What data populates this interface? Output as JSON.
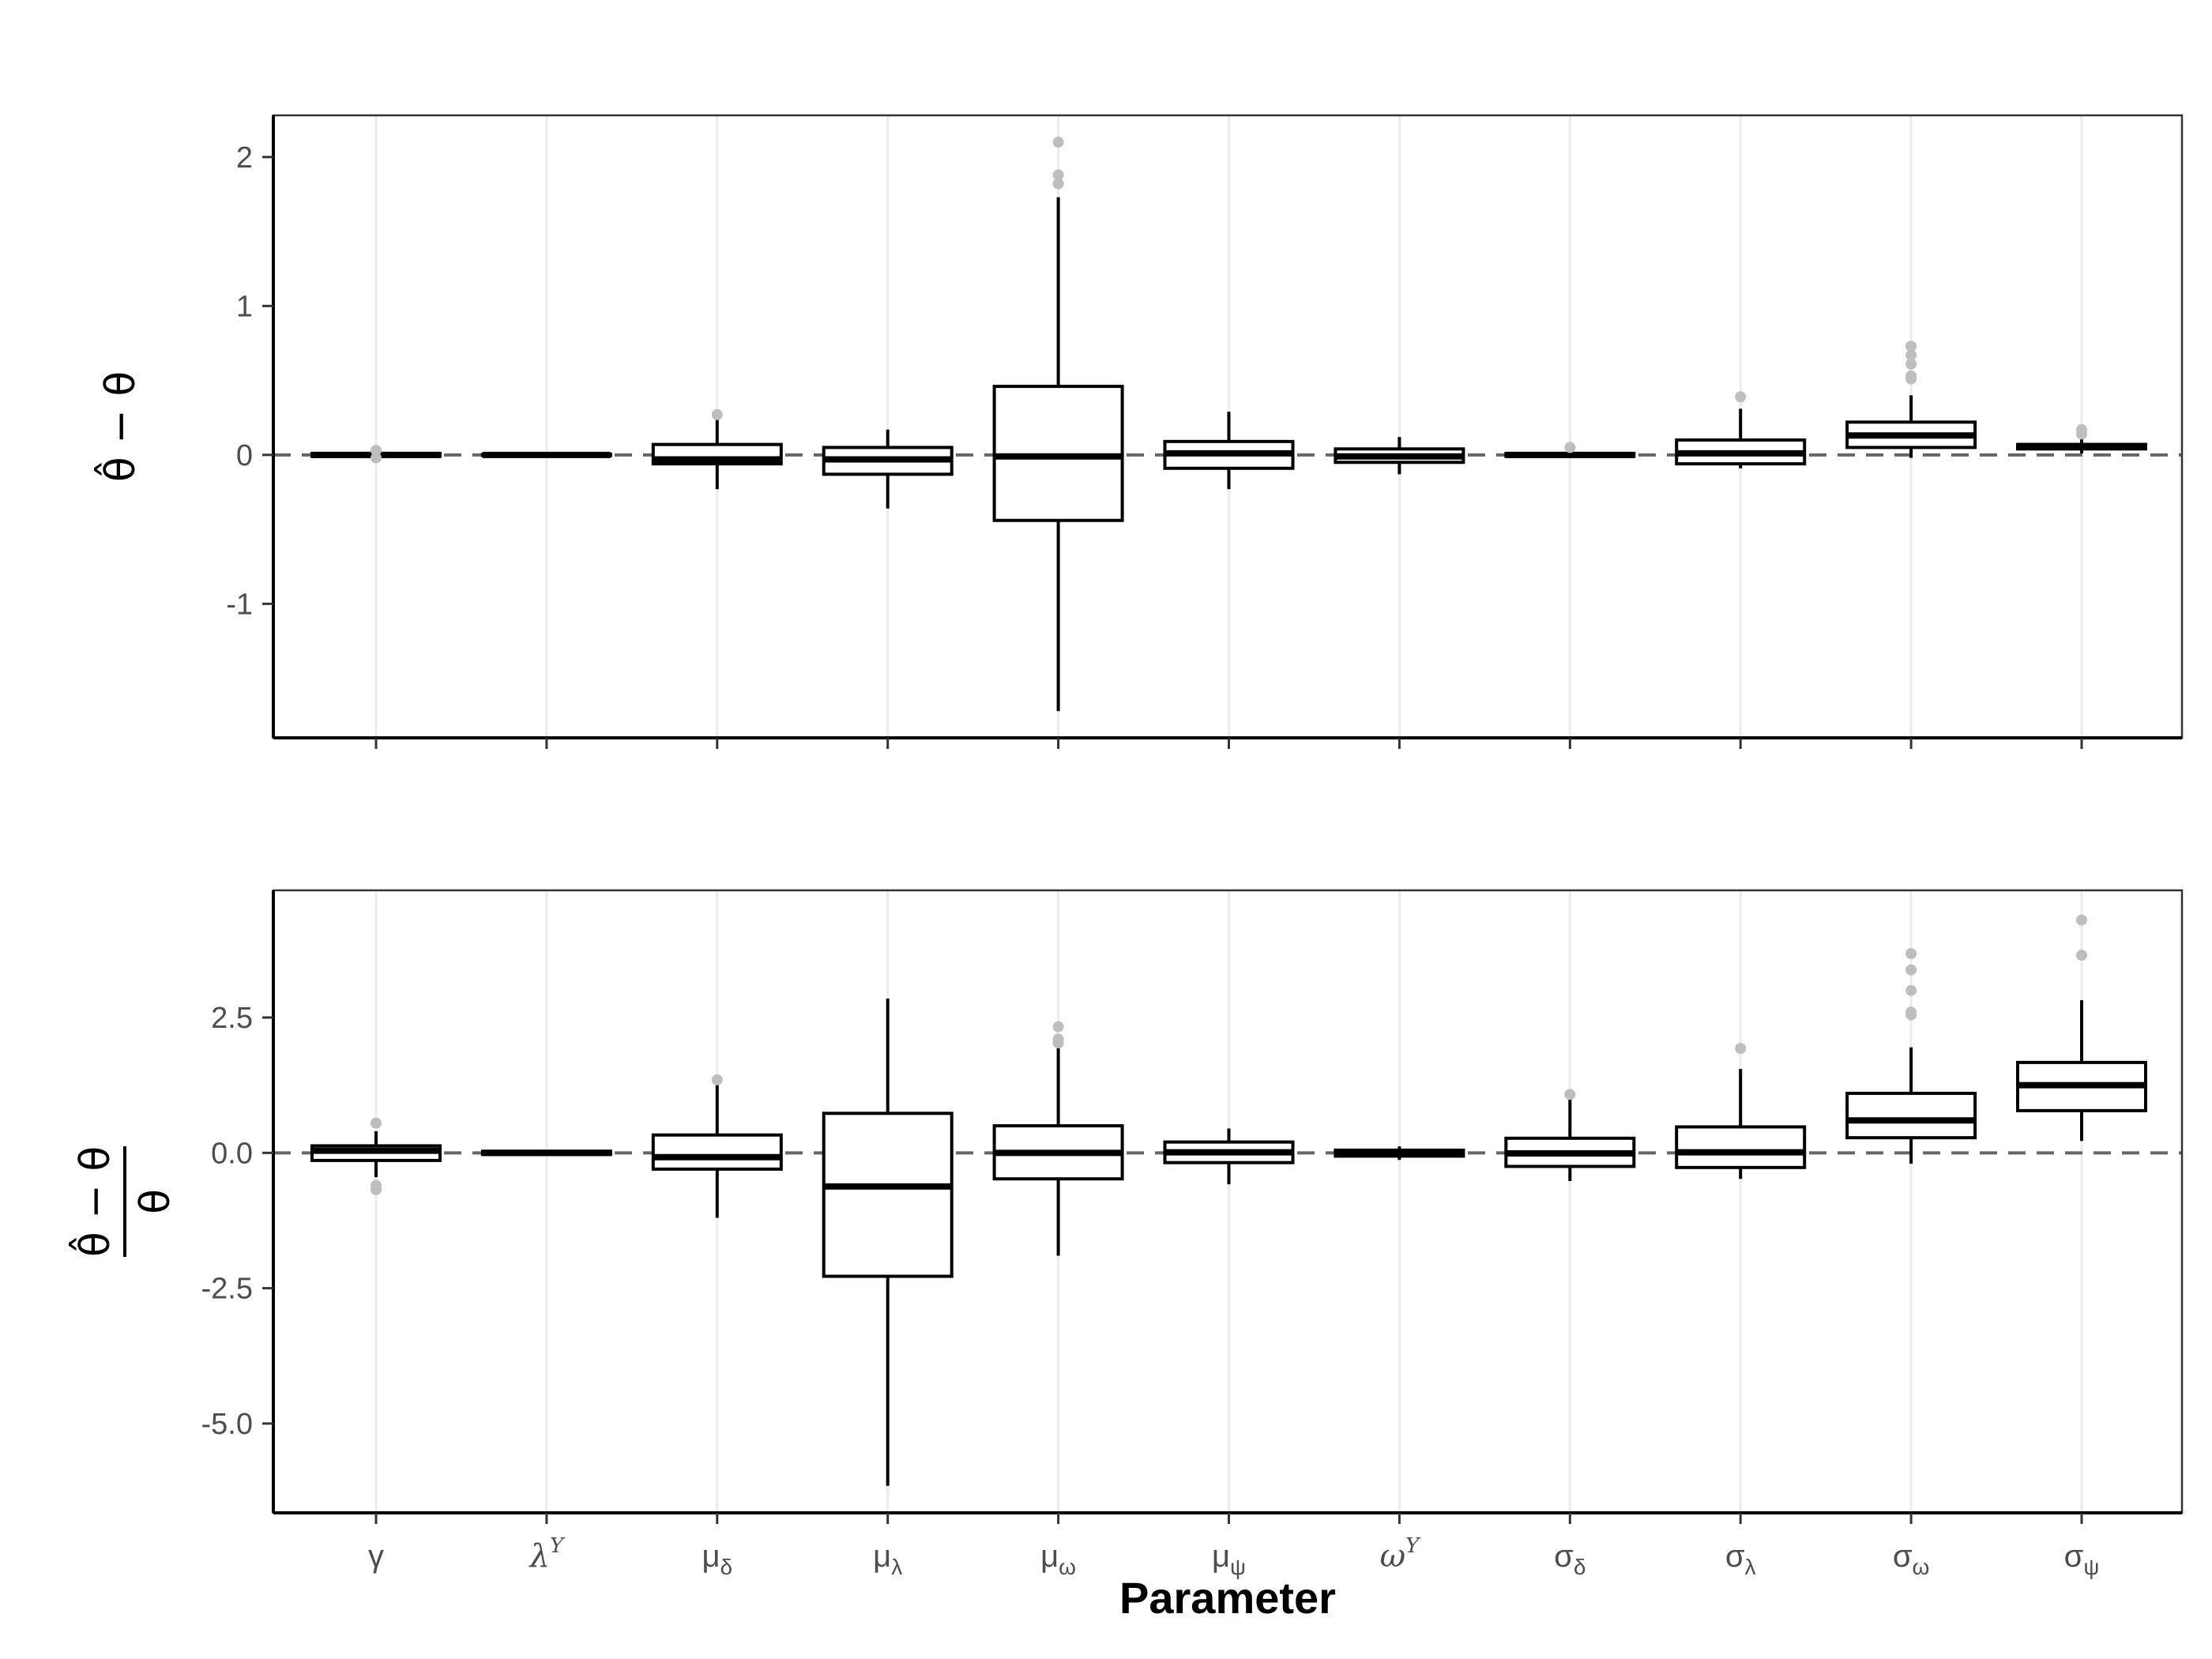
{
  "chart_data": {
    "type": "boxplot",
    "xlabel": "Parameter",
    "categories": [
      {
        "base": "γ",
        "sub": "",
        "sup": "",
        "italic": false
      },
      {
        "base": "λ",
        "sub": "",
        "sup": "Y",
        "italic": true
      },
      {
        "base": "μ",
        "sub": "δ",
        "sup": "",
        "italic": false
      },
      {
        "base": "μ",
        "sub": "λ",
        "sup": "",
        "italic": false
      },
      {
        "base": "μ",
        "sub": "ω",
        "sup": "",
        "italic": false
      },
      {
        "base": "μ",
        "sub": "ψ",
        "sup": "",
        "italic": false
      },
      {
        "base": "ω",
        "sub": "",
        "sup": "Y",
        "italic": true
      },
      {
        "base": "σ",
        "sub": "δ",
        "sup": "",
        "italic": false
      },
      {
        "base": "σ",
        "sub": "λ",
        "sup": "",
        "italic": false
      },
      {
        "base": "σ",
        "sub": "ω",
        "sup": "",
        "italic": false
      },
      {
        "base": "σ",
        "sub": "ψ",
        "sup": "",
        "italic": false
      }
    ],
    "panels": [
      {
        "ylabel_numerator": "θ̂ − θ",
        "ylabel_denominator": "",
        "ylim": [
          -1.9,
          2.28
        ],
        "yticks": [
          -1,
          0,
          1,
          2
        ],
        "ytick_labels": [
          "-1",
          "0",
          "1",
          "2"
        ],
        "reference_line": 0,
        "boxes": [
          {
            "q1": -0.01,
            "median": 0.0,
            "q3": 0.01,
            "whisker_low": -0.02,
            "whisker_high": 0.02,
            "outliers": [
              0.03,
              -0.02
            ]
          },
          {
            "q1": -0.005,
            "median": 0.0,
            "q3": 0.005,
            "whisker_low": -0.01,
            "whisker_high": 0.01,
            "outliers": []
          },
          {
            "q1": -0.06,
            "median": -0.03,
            "q3": 0.07,
            "whisker_low": -0.23,
            "whisker_high": 0.24,
            "outliers": [
              0.27
            ]
          },
          {
            "q1": -0.13,
            "median": -0.03,
            "q3": 0.05,
            "whisker_low": -0.36,
            "whisker_high": 0.17,
            "outliers": []
          },
          {
            "q1": -0.44,
            "median": -0.01,
            "q3": 0.46,
            "whisker_low": -1.72,
            "whisker_high": 1.73,
            "outliers": [
              1.82,
              1.88,
              2.1
            ]
          },
          {
            "q1": -0.09,
            "median": 0.01,
            "q3": 0.09,
            "whisker_low": -0.23,
            "whisker_high": 0.29,
            "outliers": []
          },
          {
            "q1": -0.05,
            "median": -0.01,
            "q3": 0.04,
            "whisker_low": -0.13,
            "whisker_high": 0.12,
            "outliers": []
          },
          {
            "q1": -0.01,
            "median": 0.0,
            "q3": 0.01,
            "whisker_low": -0.02,
            "whisker_high": 0.03,
            "outliers": [
              0.05
            ]
          },
          {
            "q1": -0.06,
            "median": 0.01,
            "q3": 0.1,
            "whisker_low": -0.09,
            "whisker_high": 0.31,
            "outliers": [
              0.39
            ]
          },
          {
            "q1": 0.05,
            "median": 0.13,
            "q3": 0.22,
            "whisker_low": -0.02,
            "whisker_high": 0.4,
            "outliers": [
              0.51,
              0.53,
              0.61,
              0.67,
              0.73
            ]
          },
          {
            "q1": 0.04,
            "median": 0.06,
            "q3": 0.07,
            "whisker_low": 0.01,
            "whisker_high": 0.12,
            "outliers": [
              0.14,
              0.17
            ]
          }
        ]
      },
      {
        "ylabel_numerator": "θ̂ − θ",
        "ylabel_denominator": "θ",
        "ylim": [
          -6.65,
          4.85
        ],
        "yticks": [
          -5.0,
          -2.5,
          0.0,
          2.5
        ],
        "ytick_labels": [
          "-5.0",
          "-2.5",
          "0.0",
          "2.5"
        ],
        "reference_line": 0,
        "boxes": [
          {
            "q1": -0.14,
            "median": 0.04,
            "q3": 0.13,
            "whisker_low": -0.45,
            "whisker_high": 0.4,
            "outliers": [
              0.55,
              -0.6,
              -0.68
            ]
          },
          {
            "q1": -0.03,
            "median": 0.0,
            "q3": 0.03,
            "whisker_low": -0.05,
            "whisker_high": 0.05,
            "outliers": []
          },
          {
            "q1": -0.3,
            "median": -0.08,
            "q3": 0.33,
            "whisker_low": -1.2,
            "whisker_high": 1.25,
            "outliers": [
              1.35
            ]
          },
          {
            "q1": -2.28,
            "median": -0.62,
            "q3": 0.73,
            "whisker_low": -6.15,
            "whisker_high": 2.85,
            "outliers": []
          },
          {
            "q1": -0.48,
            "median": 0.0,
            "q3": 0.5,
            "whisker_low": -1.9,
            "whisker_high": 1.95,
            "outliers": [
              2.03,
              2.1,
              2.33
            ]
          },
          {
            "q1": -0.18,
            "median": 0.01,
            "q3": 0.2,
            "whisker_low": -0.58,
            "whisker_high": 0.45,
            "outliers": []
          },
          {
            "q1": -0.06,
            "median": -0.02,
            "q3": 0.05,
            "whisker_low": -0.13,
            "whisker_high": 0.12,
            "outliers": []
          },
          {
            "q1": -0.25,
            "median": -0.01,
            "q3": 0.27,
            "whisker_low": -0.52,
            "whisker_high": 1.0,
            "outliers": [
              1.08
            ]
          },
          {
            "q1": -0.27,
            "median": 0.01,
            "q3": 0.48,
            "whisker_low": -0.48,
            "whisker_high": 1.55,
            "outliers": [
              1.93
            ]
          },
          {
            "q1": 0.28,
            "median": 0.6,
            "q3": 1.1,
            "whisker_low": -0.2,
            "whisker_high": 1.95,
            "outliers": [
              2.55,
              2.6,
              3.0,
              3.38,
              3.68
            ]
          },
          {
            "q1": 0.78,
            "median": 1.25,
            "q3": 1.67,
            "whisker_low": 0.22,
            "whisker_high": 2.82,
            "outliers": [
              3.65,
              4.3
            ]
          }
        ]
      }
    ]
  }
}
